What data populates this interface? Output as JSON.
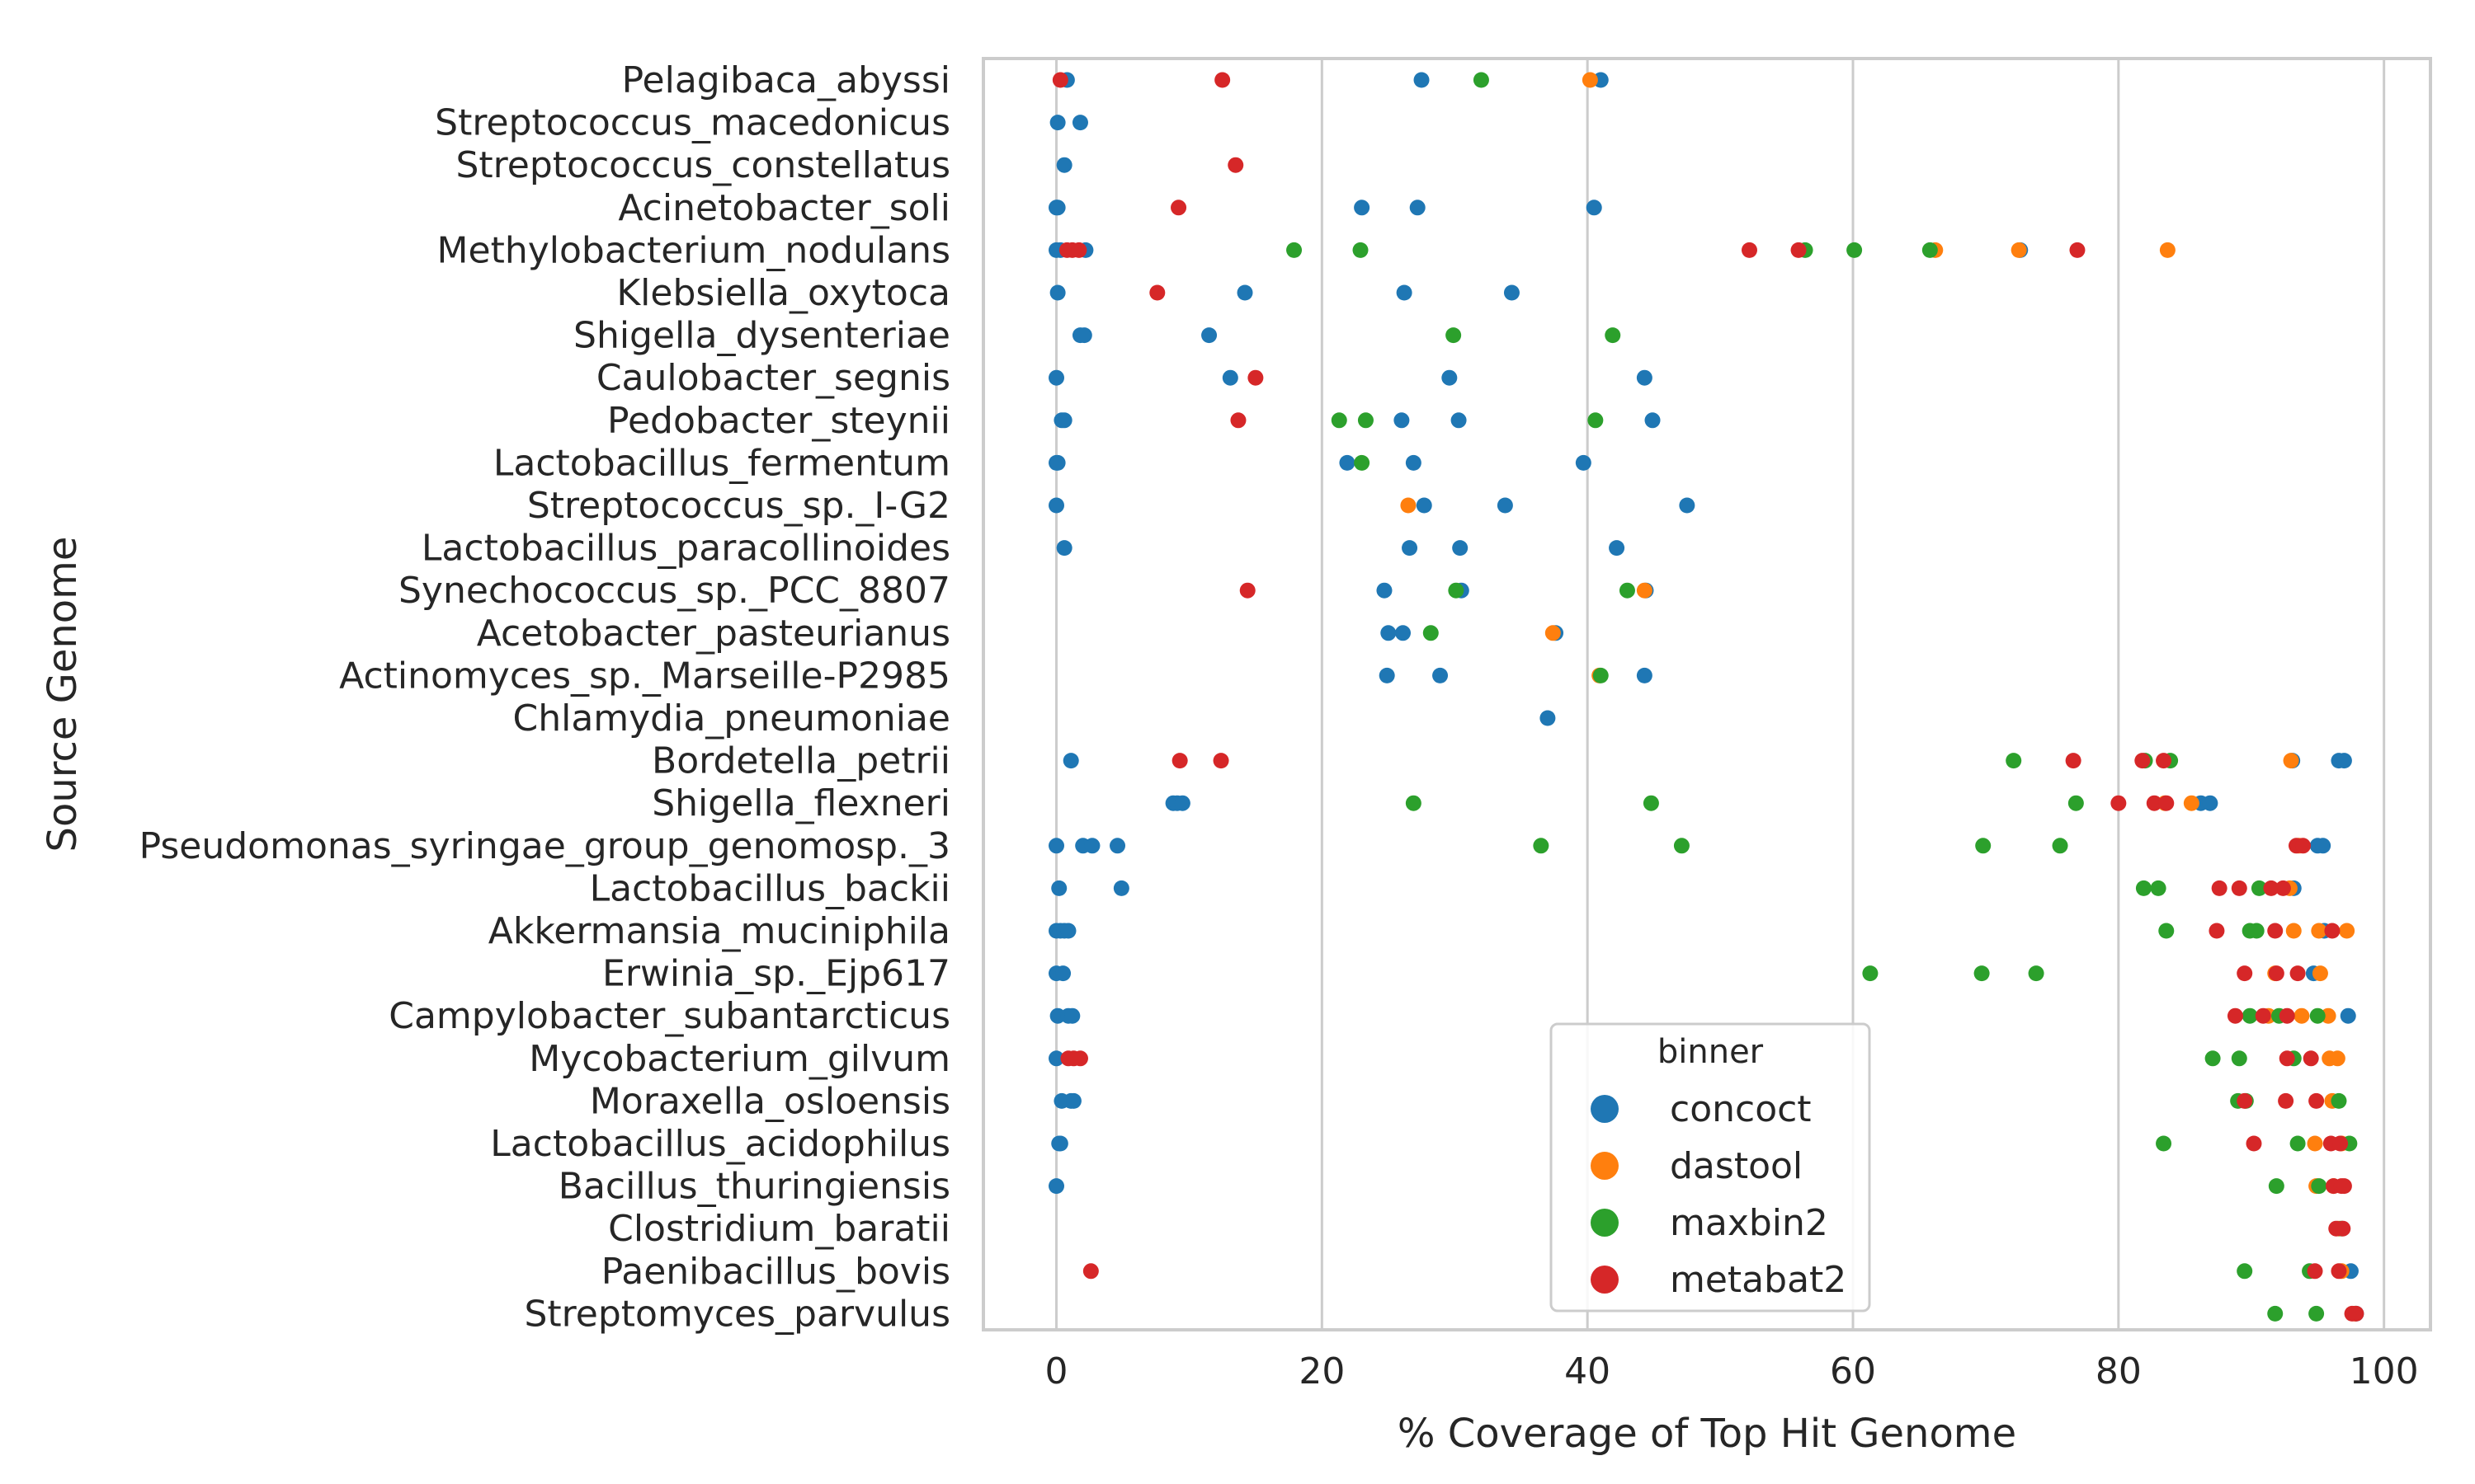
{
  "chart_data": {
    "type": "scatter",
    "title": "",
    "xlabel": "% Coverage of Top Hit Genome",
    "ylabel": "Source Genome",
    "xlim": [
      -5.5,
      103.5
    ],
    "xticks": [
      0,
      20,
      40,
      60,
      80,
      100
    ],
    "grid": "vertical",
    "legend": {
      "title": "binner",
      "placement": "lower-center"
    },
    "categories": [
      "Pelagibaca_abyssi",
      "Streptococcus_macedonicus",
      "Streptococcus_constellatus",
      "Acinetobacter_soli",
      "Methylobacterium_nodulans",
      "Klebsiella_oxytoca",
      "Shigella_dysenteriae",
      "Caulobacter_segnis",
      "Pedobacter_steynii",
      "Lactobacillus_fermentum",
      "Streptococcus_sp._I-G2",
      "Lactobacillus_paracollinoides",
      "Synechococcus_sp._PCC_8807",
      "Acetobacter_pasteurianus",
      "Actinomyces_sp._Marseille-P2985",
      "Chlamydia_pneumoniae",
      "Bordetella_petrii",
      "Shigella_flexneri",
      "Pseudomonas_syringae_group_genomosp._3",
      "Lactobacillus_backii",
      "Akkermansia_muciniphila",
      "Erwinia_sp._Ejp617",
      "Campylobacter_subantarcticus",
      "Mycobacterium_gilvum",
      "Moraxella_osloensis",
      "Lactobacillus_acidophilus",
      "Bacillus_thuringiensis",
      "Clostridium_baratii",
      "Paenibacillus_bovis",
      "Streptomyces_parvulus"
    ],
    "series": [
      {
        "name": "concoct",
        "color": "#1f77b4",
        "points": [
          [
            0.8,
            0
          ],
          [
            27.5,
            0
          ],
          [
            41.0,
            0
          ],
          [
            0.1,
            1
          ],
          [
            1.8,
            1
          ],
          [
            0.6,
            2
          ],
          [
            0.0,
            3
          ],
          [
            0.1,
            3
          ],
          [
            23.0,
            3
          ],
          [
            27.2,
            3
          ],
          [
            40.5,
            3
          ],
          [
            0.0,
            4
          ],
          [
            0.3,
            4
          ],
          [
            2.2,
            4
          ],
          [
            72.6,
            4
          ],
          [
            0.1,
            5
          ],
          [
            14.2,
            5
          ],
          [
            26.2,
            5
          ],
          [
            34.3,
            5
          ],
          [
            1.8,
            6
          ],
          [
            2.1,
            6
          ],
          [
            11.5,
            6
          ],
          [
            0.0,
            7
          ],
          [
            13.1,
            7
          ],
          [
            29.6,
            7
          ],
          [
            44.3,
            7
          ],
          [
            0.4,
            8
          ],
          [
            0.6,
            8
          ],
          [
            26.0,
            8
          ],
          [
            30.3,
            8
          ],
          [
            44.9,
            8
          ],
          [
            0.0,
            9
          ],
          [
            0.1,
            9
          ],
          [
            21.9,
            9
          ],
          [
            26.9,
            9
          ],
          [
            39.7,
            9
          ],
          [
            0.0,
            10
          ],
          [
            27.7,
            10
          ],
          [
            33.8,
            10
          ],
          [
            47.5,
            10
          ],
          [
            0.6,
            11
          ],
          [
            26.6,
            11
          ],
          [
            30.4,
            11
          ],
          [
            42.2,
            11
          ],
          [
            24.7,
            12
          ],
          [
            30.5,
            12
          ],
          [
            44.4,
            12
          ],
          [
            25.0,
            13
          ],
          [
            26.1,
            13
          ],
          [
            37.6,
            13
          ],
          [
            24.9,
            14
          ],
          [
            28.9,
            14
          ],
          [
            44.3,
            14
          ],
          [
            37.0,
            15
          ],
          [
            1.1,
            16
          ],
          [
            93.1,
            16
          ],
          [
            96.6,
            16
          ],
          [
            97.0,
            16
          ],
          [
            8.8,
            17
          ],
          [
            9.1,
            17
          ],
          [
            9.5,
            17
          ],
          [
            86.2,
            17
          ],
          [
            86.9,
            17
          ],
          [
            0.0,
            18
          ],
          [
            2.0,
            18
          ],
          [
            2.7,
            18
          ],
          [
            4.6,
            18
          ],
          [
            95.0,
            18
          ],
          [
            95.4,
            18
          ],
          [
            0.2,
            19
          ],
          [
            4.9,
            19
          ],
          [
            93.2,
            19
          ],
          [
            0.0,
            20
          ],
          [
            0.3,
            20
          ],
          [
            0.6,
            20
          ],
          [
            0.9,
            20
          ],
          [
            95.5,
            20
          ],
          [
            0.0,
            21
          ],
          [
            0.5,
            21
          ],
          [
            94.7,
            21
          ],
          [
            0.1,
            22
          ],
          [
            0.9,
            22
          ],
          [
            1.2,
            22
          ],
          [
            97.3,
            22
          ],
          [
            0.0,
            23
          ],
          [
            0.4,
            24
          ],
          [
            1.1,
            24
          ],
          [
            1.3,
            24
          ],
          [
            0.2,
            25
          ],
          [
            0.3,
            25
          ],
          [
            0.0,
            26
          ],
          [
            97.5,
            28
          ],
          [
            97.9,
            29
          ]
        ]
      },
      {
        "name": "dastool",
        "color": "#ff7f0e",
        "points": [
          [
            40.2,
            0
          ],
          [
            66.2,
            4
          ],
          [
            72.5,
            4
          ],
          [
            83.7,
            4
          ],
          [
            26.5,
            10
          ],
          [
            44.3,
            12
          ],
          [
            37.4,
            13
          ],
          [
            40.9,
            14
          ],
          [
            93.0,
            16
          ],
          [
            83.5,
            17
          ],
          [
            85.5,
            17
          ],
          [
            93.6,
            18
          ],
          [
            92.9,
            19
          ],
          [
            93.2,
            20
          ],
          [
            95.1,
            20
          ],
          [
            97.2,
            20
          ],
          [
            91.8,
            21
          ],
          [
            95.2,
            21
          ],
          [
            91.3,
            22
          ],
          [
            93.8,
            22
          ],
          [
            95.8,
            22
          ],
          [
            95.9,
            23
          ],
          [
            96.5,
            23
          ],
          [
            96.1,
            24
          ],
          [
            94.8,
            25
          ],
          [
            96.8,
            25
          ],
          [
            94.9,
            26
          ],
          [
            96.2,
            26
          ],
          [
            96.6,
            27
          ],
          [
            96.8,
            28
          ],
          [
            97.8,
            29
          ]
        ]
      },
      {
        "name": "maxbin2",
        "color": "#2ca02c",
        "points": [
          [
            32.0,
            0
          ],
          [
            17.9,
            4
          ],
          [
            22.9,
            4
          ],
          [
            56.4,
            4
          ],
          [
            60.1,
            4
          ],
          [
            65.8,
            4
          ],
          [
            29.9,
            6
          ],
          [
            41.9,
            6
          ],
          [
            21.3,
            8
          ],
          [
            23.3,
            8
          ],
          [
            40.6,
            8
          ],
          [
            23.0,
            9
          ],
          [
            30.1,
            12
          ],
          [
            43.0,
            12
          ],
          [
            28.2,
            13
          ],
          [
            41.0,
            14
          ],
          [
            72.1,
            16
          ],
          [
            82.0,
            16
          ],
          [
            83.9,
            16
          ],
          [
            26.9,
            17
          ],
          [
            44.8,
            17
          ],
          [
            76.8,
            17
          ],
          [
            36.5,
            18
          ],
          [
            47.1,
            18
          ],
          [
            69.8,
            18
          ],
          [
            75.6,
            18
          ],
          [
            81.9,
            19
          ],
          [
            83.0,
            19
          ],
          [
            90.6,
            19
          ],
          [
            83.6,
            20
          ],
          [
            89.9,
            20
          ],
          [
            90.4,
            20
          ],
          [
            61.3,
            21
          ],
          [
            69.7,
            21
          ],
          [
            73.8,
            21
          ],
          [
            89.9,
            22
          ],
          [
            92.1,
            22
          ],
          [
            95.0,
            22
          ],
          [
            87.1,
            23
          ],
          [
            89.1,
            23
          ],
          [
            93.2,
            23
          ],
          [
            89.0,
            24
          ],
          [
            89.6,
            24
          ],
          [
            96.6,
            24
          ],
          [
            83.4,
            25
          ],
          [
            93.5,
            25
          ],
          [
            97.4,
            25
          ],
          [
            91.9,
            26
          ],
          [
            95.1,
            26
          ],
          [
            96.8,
            27
          ],
          [
            89.5,
            28
          ],
          [
            94.4,
            28
          ],
          [
            91.8,
            29
          ],
          [
            94.9,
            29
          ]
        ]
      },
      {
        "name": "metabat2",
        "color": "#d62728",
        "points": [
          [
            0.3,
            0
          ],
          [
            12.5,
            0
          ],
          [
            13.5,
            2
          ],
          [
            9.2,
            3
          ],
          [
            0.8,
            4
          ],
          [
            1.2,
            4
          ],
          [
            1.7,
            4
          ],
          [
            52.2,
            4
          ],
          [
            55.9,
            4
          ],
          [
            76.9,
            4
          ],
          [
            7.6,
            5
          ],
          [
            15.0,
            7
          ],
          [
            13.7,
            8
          ],
          [
            14.4,
            12
          ],
          [
            9.3,
            16
          ],
          [
            12.4,
            16
          ],
          [
            76.6,
            16
          ],
          [
            81.8,
            16
          ],
          [
            83.4,
            16
          ],
          [
            80.0,
            17
          ],
          [
            82.7,
            17
          ],
          [
            83.6,
            17
          ],
          [
            93.4,
            18
          ],
          [
            93.9,
            18
          ],
          [
            87.6,
            19
          ],
          [
            89.1,
            19
          ],
          [
            91.5,
            19
          ],
          [
            92.4,
            19
          ],
          [
            87.4,
            20
          ],
          [
            91.8,
            20
          ],
          [
            96.1,
            20
          ],
          [
            89.5,
            21
          ],
          [
            91.9,
            21
          ],
          [
            93.5,
            21
          ],
          [
            88.8,
            22
          ],
          [
            90.9,
            22
          ],
          [
            92.7,
            22
          ],
          [
            0.9,
            23
          ],
          [
            1.3,
            23
          ],
          [
            1.8,
            23
          ],
          [
            92.7,
            23
          ],
          [
            94.5,
            23
          ],
          [
            89.5,
            24
          ],
          [
            92.6,
            24
          ],
          [
            94.9,
            24
          ],
          [
            90.2,
            25
          ],
          [
            96.0,
            25
          ],
          [
            96.7,
            25
          ],
          [
            96.2,
            26
          ],
          [
            96.8,
            26
          ],
          [
            97.0,
            26
          ],
          [
            96.4,
            27
          ],
          [
            96.9,
            27
          ],
          [
            2.6,
            28
          ],
          [
            94.8,
            28
          ],
          [
            96.6,
            28
          ],
          [
            97.6,
            29
          ],
          [
            97.9,
            29
          ]
        ]
      }
    ]
  }
}
